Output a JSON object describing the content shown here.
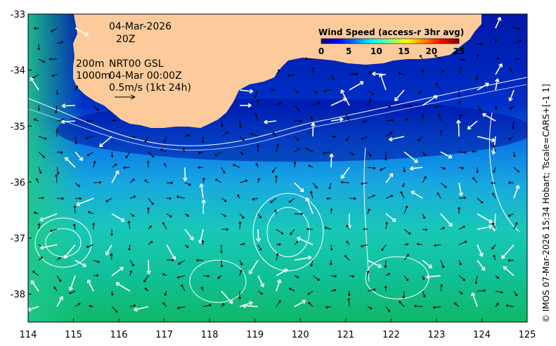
{
  "map": {
    "lon_range": [
      114,
      125
    ],
    "lat_range": [
      -38.5,
      -33
    ],
    "x_ticks": [
      114,
      115,
      116,
      117,
      118,
      119,
      120,
      121,
      122,
      123,
      124,
      125
    ],
    "y_ticks": [
      -33,
      -34,
      -35,
      -36,
      -37,
      -38
    ],
    "x_tick_labels": [
      "114",
      "115",
      "116",
      "117",
      "118",
      "119",
      "120",
      "121",
      "122",
      "123",
      "124",
      "125"
    ],
    "y_tick_labels": [
      "-33",
      "-34",
      "-35",
      "-36",
      "-37",
      "-38"
    ],
    "land_color": "#fdcb9b",
    "contour_color": "#ffffff",
    "arrow_colors": {
      "small": "#000000",
      "large": "#ffffff"
    }
  },
  "annotations": {
    "date": "04-Mar-2026",
    "hour": "20Z",
    "depth_200": "200m",
    "depth_1000": "1000m",
    "nrt": "NRT00 GSL",
    "nrt_time": "04-Mar 00:00Z",
    "scale_arrow": "0.5m/s (1kt 24h)"
  },
  "colorbar": {
    "title": "Wind Speed (access-r 3hr avg)",
    "range": [
      0,
      25
    ],
    "ticks": [
      0,
      5,
      10,
      15,
      20,
      25
    ],
    "tick_labels": [
      "0",
      "5",
      "10",
      "15",
      "20",
      "25"
    ],
    "colors": [
      "#00007f",
      "#0000ff",
      "#0080ff",
      "#00ffff",
      "#80ff80",
      "#ffff00",
      "#ff8000",
      "#ff0000",
      "#7f0000"
    ]
  },
  "credit": "© IMOS 07-Mar-2026 15:34 Hobart; Tscale=CARS+[-1 1]"
}
